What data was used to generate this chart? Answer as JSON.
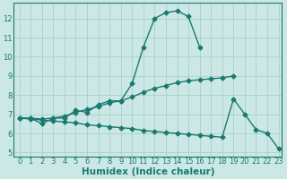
{
  "title": "",
  "xlabel": "Humidex (Indice chaleur)",
  "x": [
    0,
    1,
    2,
    3,
    4,
    5,
    6,
    7,
    8,
    9,
    10,
    11,
    12,
    13,
    14,
    15,
    16,
    17,
    18,
    19,
    20,
    21,
    22,
    23
  ],
  "line1": [
    6.8,
    6.8,
    6.5,
    6.8,
    6.8,
    7.2,
    7.1,
    7.5,
    7.7,
    7.7,
    8.6,
    10.5,
    12.0,
    12.3,
    12.4,
    12.1,
    10.5,
    null,
    null,
    null,
    null,
    null,
    null,
    null
  ],
  "line2": [
    6.8,
    6.8,
    6.75,
    6.8,
    6.9,
    7.1,
    7.25,
    7.4,
    7.6,
    7.7,
    7.9,
    8.15,
    8.35,
    8.5,
    8.65,
    8.75,
    8.8,
    8.85,
    8.9,
    9.0,
    null,
    null,
    null,
    null
  ],
  "line3": [
    6.8,
    6.75,
    6.7,
    6.65,
    6.6,
    6.55,
    6.45,
    6.4,
    6.35,
    6.3,
    6.25,
    6.15,
    6.1,
    6.05,
    6.0,
    5.95,
    5.9,
    5.85,
    5.8,
    7.8,
    7.0,
    6.2,
    6.0,
    5.2
  ],
  "ylim": [
    4.8,
    12.8
  ],
  "xlim": [
    -0.5,
    23.3
  ],
  "yticks": [
    5,
    6,
    7,
    8,
    9,
    10,
    11,
    12
  ],
  "xticks": [
    0,
    1,
    2,
    3,
    4,
    5,
    6,
    7,
    8,
    9,
    10,
    11,
    12,
    13,
    14,
    15,
    16,
    17,
    18,
    19,
    20,
    21,
    22,
    23
  ],
  "line_color": "#1a7a6e",
  "bg_color": "#cce8e6",
  "grid_color": "#aacfcc",
  "marker": "D",
  "marker_size": 2.5,
  "linewidth": 1.0,
  "tick_fontsize": 6.0,
  "label_fontsize": 7.5
}
